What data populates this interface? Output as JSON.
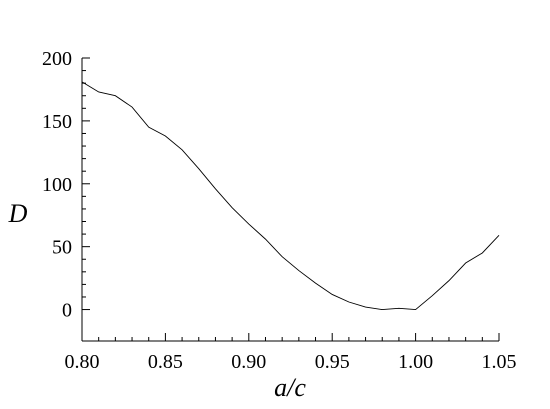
{
  "chart_data": {
    "type": "line",
    "title": "",
    "xlabel": "a/c",
    "ylabel": "D",
    "xlim": [
      0.8,
      1.05
    ],
    "ylim": [
      -25,
      200
    ],
    "grid": false,
    "x_ticks": [
      "0.80",
      "0.85",
      "0.90",
      "0.95",
      "1.00",
      "1.05"
    ],
    "y_ticks": [
      "0",
      "50",
      "100",
      "150",
      "200"
    ],
    "series": [
      {
        "x": [
          0.8,
          0.81,
          0.82,
          0.83,
          0.84,
          0.85,
          0.86,
          0.87,
          0.88,
          0.89,
          0.9,
          0.91,
          0.92,
          0.93,
          0.94,
          0.95,
          0.96,
          0.97,
          0.98,
          0.99,
          1.0,
          1.01,
          1.02,
          1.03,
          1.04,
          1.05
        ],
        "values": [
          181,
          173,
          170,
          161,
          145,
          138,
          127,
          112,
          96,
          81,
          68,
          56,
          42,
          31,
          21,
          12,
          6,
          2,
          0,
          1,
          0,
          11,
          23,
          37,
          45,
          59
        ]
      }
    ]
  }
}
